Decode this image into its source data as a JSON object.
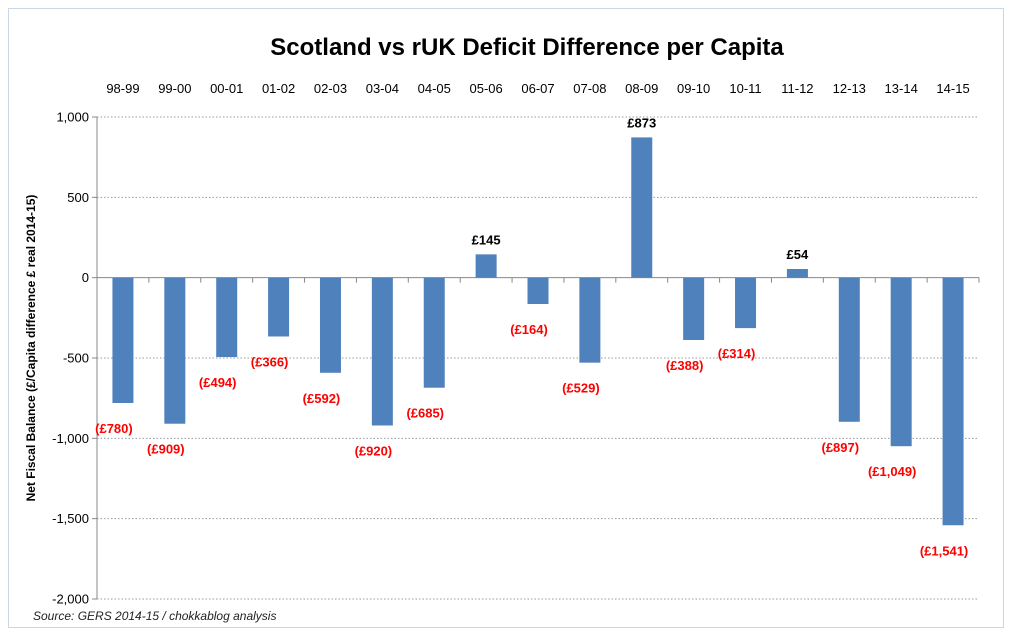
{
  "chart_data": {
    "type": "bar",
    "title": "Scotland vs rUK Deficit Difference per Capita",
    "ylabel": "Net Fiscal Balance  (£/Capita difference £ real 2014-15)",
    "xlabel": "",
    "categories": [
      "98-99",
      "99-00",
      "00-01",
      "01-02",
      "02-03",
      "03-04",
      "04-05",
      "05-06",
      "06-07",
      "07-08",
      "08-09",
      "09-10",
      "10-11",
      "11-12",
      "12-13",
      "13-14",
      "14-15"
    ],
    "values": [
      -780,
      -909,
      -494,
      -366,
      -592,
      -920,
      -685,
      145,
      -164,
      -529,
      873,
      -388,
      -314,
      54,
      -897,
      -1049,
      -1541
    ],
    "data_labels": [
      "(£780)",
      "(£909)",
      "(£494)",
      "(£366)",
      "(£592)",
      "(£920)",
      "(£685)",
      "£145",
      "(£164)",
      "(£529)",
      "£873",
      "(£388)",
      "(£314)",
      "£54",
      "(£897)",
      "(£1,049)",
      "(£1,541)"
    ],
    "ylim": [
      -2000,
      1000
    ],
    "yticks": [
      1000,
      500,
      0,
      -500,
      -1000,
      -1500,
      -2000
    ],
    "ytick_labels": [
      "1,000",
      "500",
      "0",
      "-500",
      "-1,000",
      "-1,500",
      "-2,000"
    ],
    "x_axis_position": "top",
    "grid": true,
    "legend": "none",
    "colors": {
      "bar": "#4f81bd",
      "negative_label": "#ff0000",
      "positive_label": "#000000",
      "grid": "#999999"
    },
    "source": "Source: GERS 2014-15 / chokkablog analysis"
  }
}
